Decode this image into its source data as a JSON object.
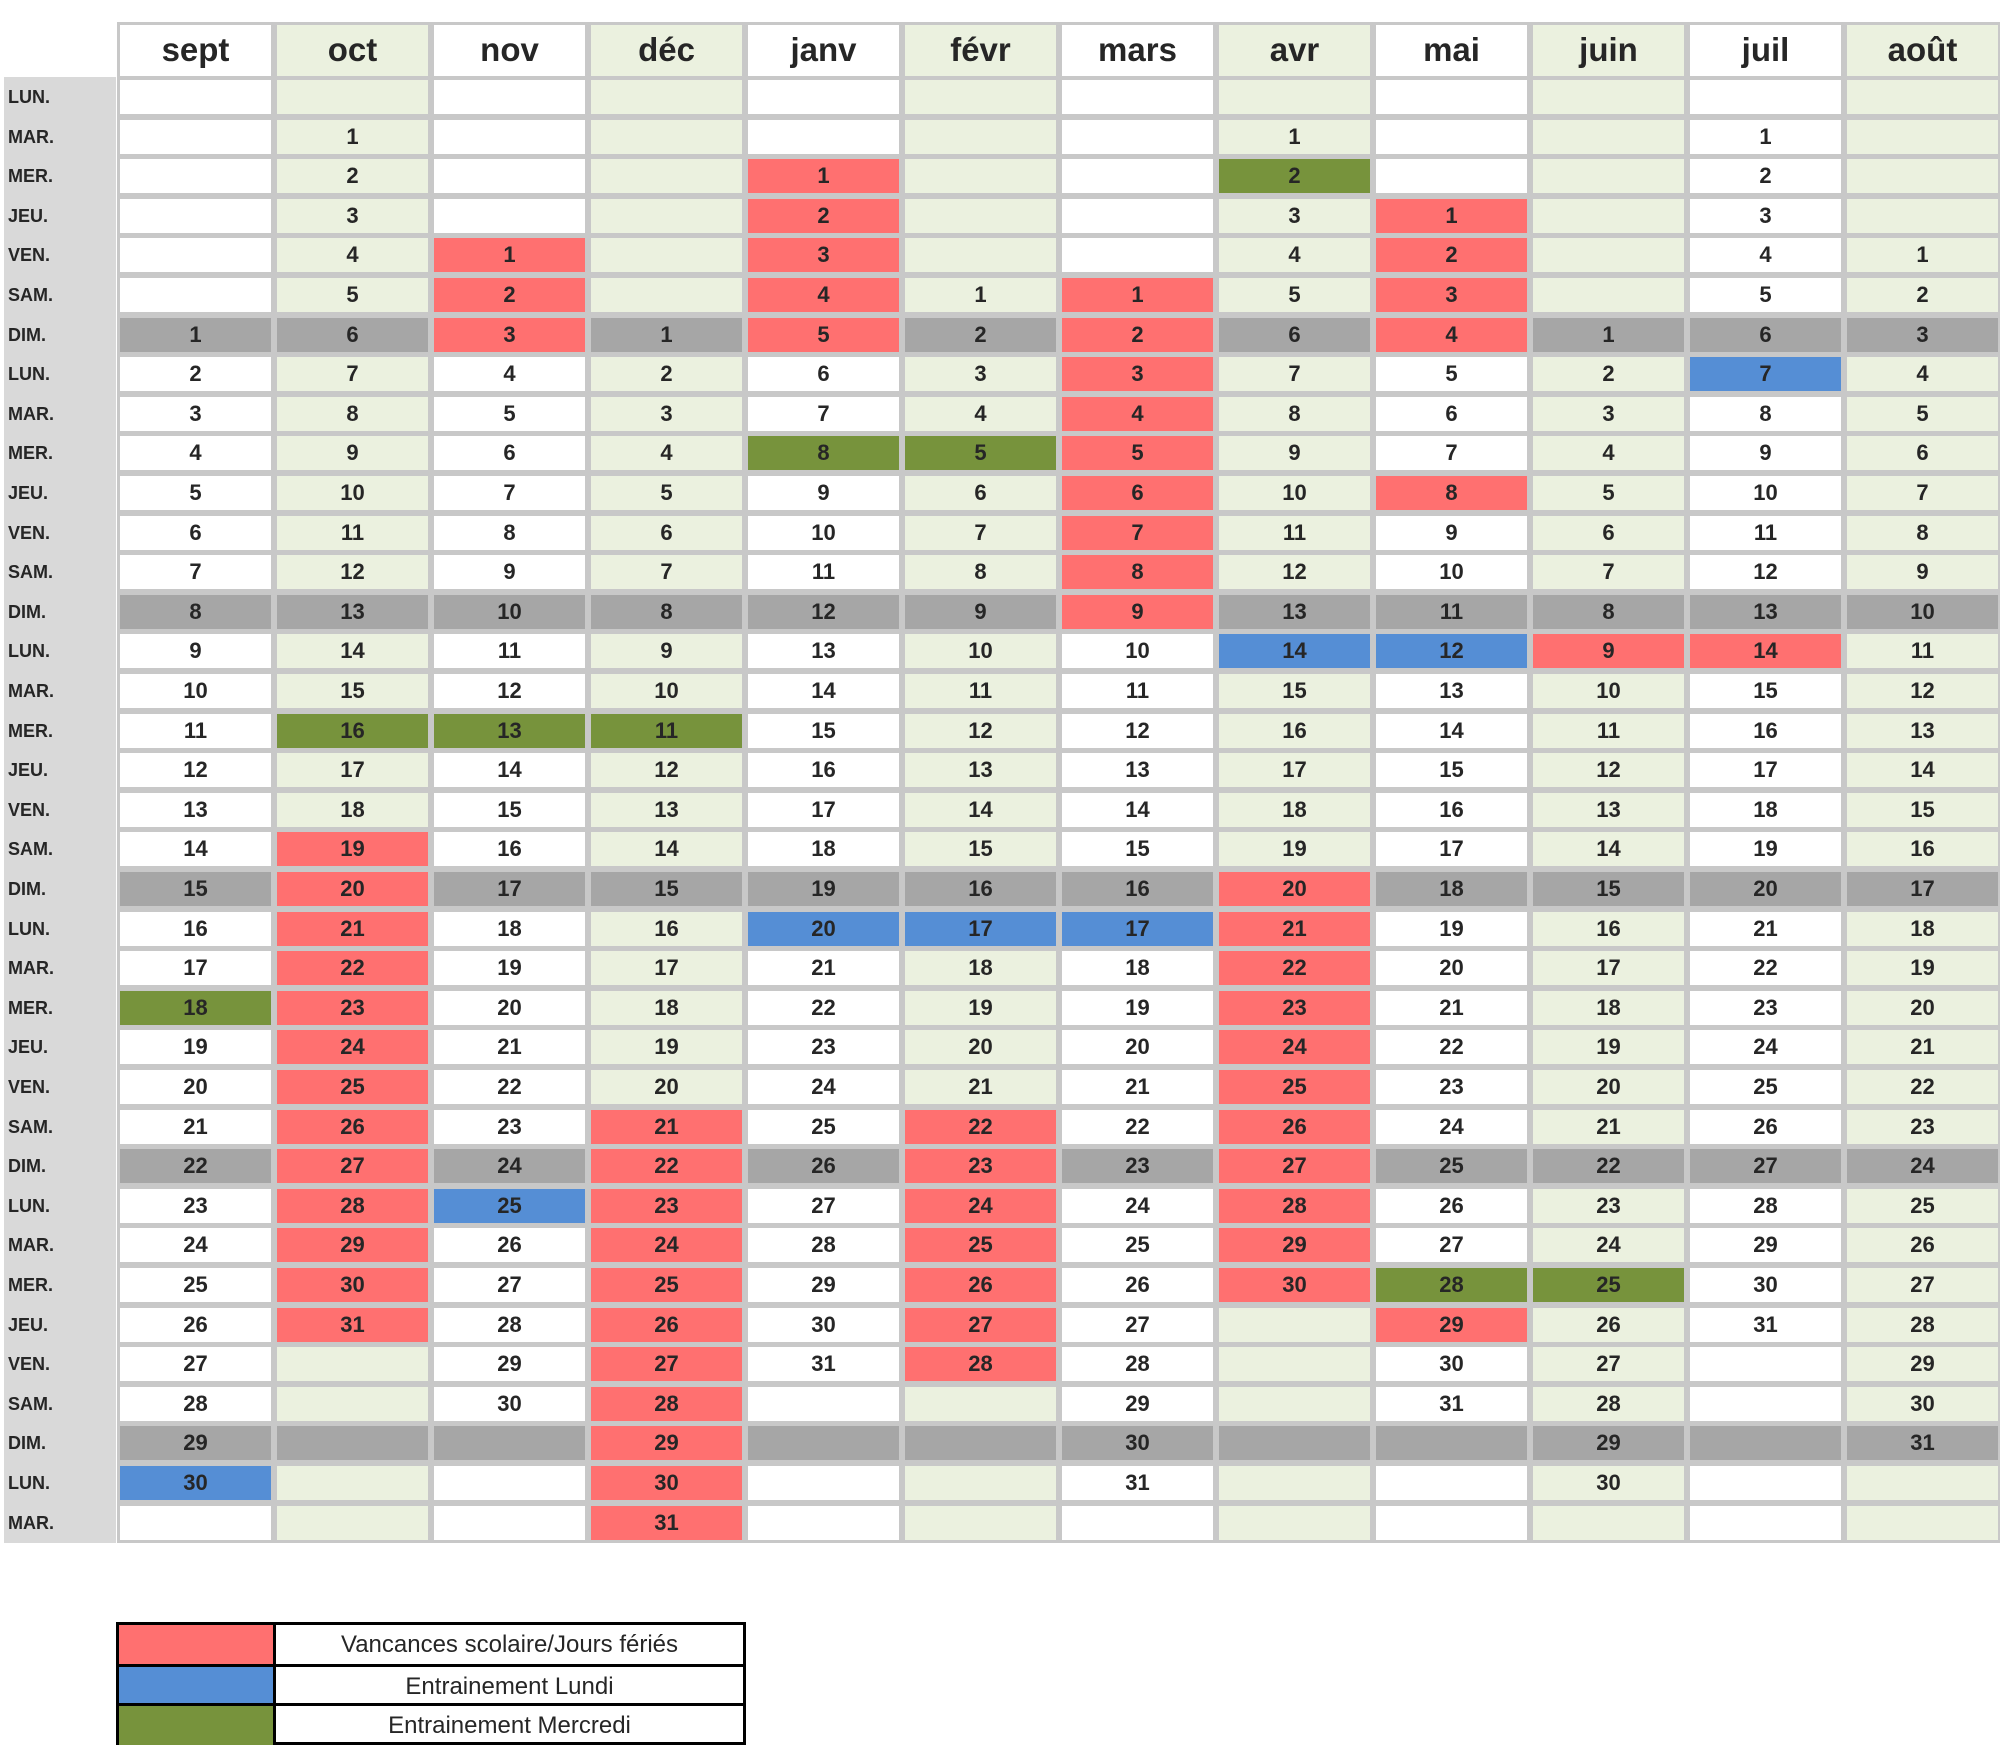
{
  "colors": {
    "white": "#ffffff",
    "light_green": "#ebf1df",
    "weekend_gray": "#a6a6a6",
    "vacation_red": "#ff7070",
    "training_monday_blue": "#558ed5",
    "training_wednesday_green": "#77933c"
  },
  "months": [
    "sept",
    "oct",
    "nov",
    "déc",
    "janv",
    "févr",
    "mars",
    "avr",
    "mai",
    "juin",
    "juil",
    "août"
  ],
  "month_start_row": [
    6,
    1,
    4,
    6,
    2,
    5,
    5,
    1,
    3,
    6,
    1,
    4
  ],
  "month_days": [
    30,
    31,
    30,
    31,
    31,
    28,
    31,
    30,
    31,
    30,
    31,
    31
  ],
  "day_labels": [
    "LUN.",
    "MAR.",
    "MER.",
    "JEU.",
    "VEN.",
    "SAM.",
    "DIM.",
    "LUN.",
    "MAR.",
    "MER.",
    "JEU.",
    "VEN.",
    "SAM.",
    "DIM.",
    "LUN.",
    "MAR.",
    "MER.",
    "JEU.",
    "VEN.",
    "SAM.",
    "DIM.",
    "LUN.",
    "MAR.",
    "MER.",
    "JEU.",
    "VEN.",
    "SAM.",
    "DIM.",
    "LUN.",
    "MAR.",
    "MER.",
    "JEU.",
    "VEN.",
    "SAM.",
    "DIM.",
    "LUN.",
    "MAR."
  ],
  "highlights": {
    "sept": {
      "red": [],
      "blue": [
        30
      ],
      "green": [
        18
      ]
    },
    "oct": {
      "red": [
        19,
        20,
        21,
        22,
        23,
        24,
        25,
        26,
        27,
        28,
        29,
        30,
        31
      ],
      "blue": [],
      "green": [
        16
      ]
    },
    "nov": {
      "red": [
        1,
        2,
        3
      ],
      "blue": [
        25
      ],
      "green": [
        13
      ]
    },
    "déc": {
      "red": [
        21,
        22,
        23,
        24,
        25,
        26,
        27,
        28,
        29,
        30,
        31
      ],
      "blue": [],
      "green": [
        11
      ]
    },
    "janv": {
      "red": [
        1,
        2,
        3,
        4,
        5
      ],
      "blue": [
        20
      ],
      "green": [
        8
      ]
    },
    "févr": {
      "red": [
        22,
        23,
        24,
        25,
        26,
        27,
        28
      ],
      "blue": [
        17
      ],
      "green": [
        5
      ]
    },
    "mars": {
      "red": [
        1,
        2,
        3,
        4,
        5,
        6,
        7,
        8,
        9
      ],
      "blue": [
        17
      ],
      "green": []
    },
    "avr": {
      "red": [
        20,
        21,
        22,
        23,
        24,
        25,
        26,
        27,
        28,
        29,
        30
      ],
      "blue": [
        14
      ],
      "green": [
        2
      ]
    },
    "mai": {
      "red": [
        1,
        2,
        3,
        4,
        8,
        29
      ],
      "blue": [
        12
      ],
      "green": [
        28
      ]
    },
    "juin": {
      "red": [
        9
      ],
      "blue": [],
      "green": [
        25
      ]
    },
    "juil": {
      "red": [
        14
      ],
      "blue": [
        7
      ],
      "green": []
    },
    "août": {
      "red": [],
      "blue": [],
      "green": []
    }
  },
  "legend": [
    {
      "label": "Vancances scolaire/Jours fériés",
      "color": "#ff7070"
    },
    {
      "label": "Entrainement Lundi",
      "color": "#558ed5"
    },
    {
      "label": "Entrainement Mercredi",
      "color": "#77933c"
    }
  ]
}
